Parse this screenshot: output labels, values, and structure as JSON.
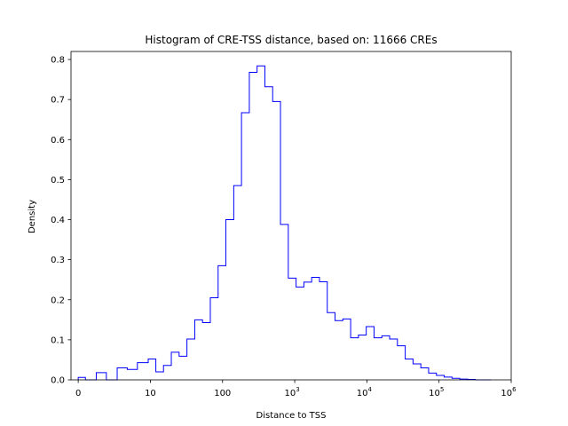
{
  "chart_data": {
    "type": "histogram",
    "title": "Histogram of CRE-TSS distance, based on: 11666 CREs",
    "xlabel": "Distance to TSS",
    "ylabel": "Density",
    "x_scale": "symlog",
    "x_linthresh": 10,
    "xlim": [
      -1,
      1000000
    ],
    "ylim": [
      0,
      0.82
    ],
    "x_ticks": [
      {
        "value": 0,
        "label": "0"
      },
      {
        "value": 10,
        "label": "10"
      },
      {
        "value": 100,
        "label": "100"
      },
      {
        "value": 1000,
        "base": "10",
        "exp": "3"
      },
      {
        "value": 10000,
        "base": "10",
        "exp": "4"
      },
      {
        "value": 100000,
        "base": "10",
        "exp": "5"
      },
      {
        "value": 1000000,
        "base": "10",
        "exp": "6"
      }
    ],
    "y_ticks": [
      "0.0",
      "0.1",
      "0.2",
      "0.3",
      "0.4",
      "0.5",
      "0.6",
      "0.7",
      "0.8"
    ],
    "y_tick_values": [
      0,
      0.1,
      0.2,
      0.3,
      0.4,
      0.5,
      0.6,
      0.7,
      0.8
    ],
    "color": "#0000ff",
    "bin_edges": [
      0,
      1.0,
      2.5,
      3.9,
      5.4,
      6.8,
      8.2,
      9.7,
      11.9,
      15.2,
      19.5,
      25.0,
      32.1,
      41.2,
      52.8,
      67.7,
      86.8,
      111,
      143,
      183,
      235,
      301,
      386,
      495,
      635,
      815,
      1045,
      1340,
      1718,
      2203,
      2826,
      3624,
      4647,
      5960,
      7643,
      9802,
      12571,
      16122,
      20675,
      26514,
      34003,
      43607,
      55924,
      71720,
      91978,
      117958,
      151276,
      194004,
      248802,
      319078,
      409202,
      524783
    ],
    "values": [
      0.006,
      0.0,
      0.018,
      0.0,
      0.03,
      0.026,
      0.043,
      0.052,
      0.02,
      0.036,
      0.069,
      0.059,
      0.102,
      0.15,
      0.143,
      0.205,
      0.285,
      0.4,
      0.485,
      0.667,
      0.768,
      0.784,
      0.732,
      0.695,
      0.388,
      0.254,
      0.232,
      0.244,
      0.256,
      0.245,
      0.168,
      0.148,
      0.152,
      0.105,
      0.112,
      0.133,
      0.105,
      0.11,
      0.102,
      0.085,
      0.052,
      0.04,
      0.03,
      0.017,
      0.011,
      0.007,
      0.004,
      0.002,
      0.001,
      0.0,
      0.0
    ]
  }
}
